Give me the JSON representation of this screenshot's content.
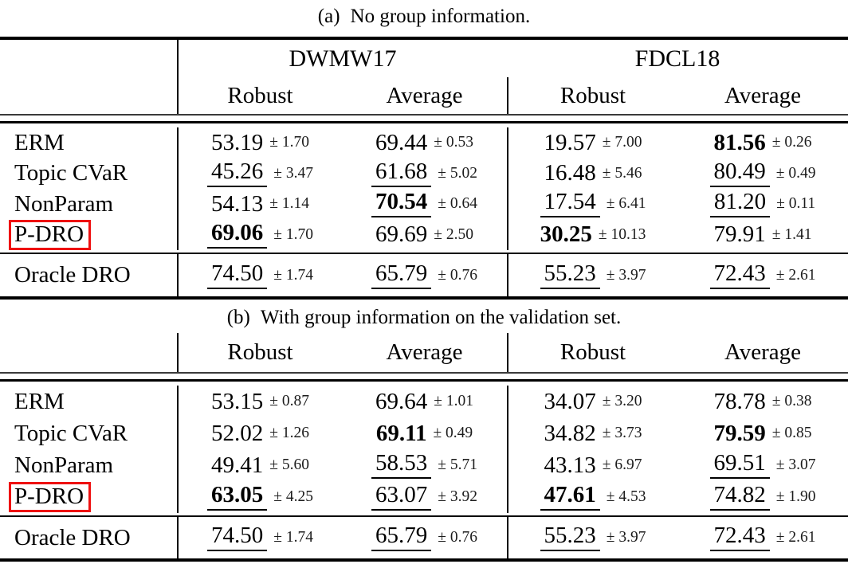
{
  "colors": {
    "highlight_box_red": "#ee1010"
  },
  "table_a": {
    "caption_tag": "(a)",
    "caption_text": "No group information.",
    "group_headers": [
      "DWMW17",
      "FDCL18"
    ],
    "column_headers": [
      "Robust",
      "Average",
      "Robust",
      "Average"
    ],
    "rows": [
      {
        "label": "ERM",
        "cells": [
          {
            "value": "53.19",
            "error": "± 1.70"
          },
          {
            "value": "69.44",
            "error": "± 0.53"
          },
          {
            "value": "19.57",
            "error": "± 7.00"
          },
          {
            "value": "81.56",
            "error": "± 0.26"
          }
        ]
      },
      {
        "label": "Topic CVaR",
        "cells": [
          {
            "value": "45.26",
            "error": "± 3.47"
          },
          {
            "value": "61.68",
            "error": "± 5.02"
          },
          {
            "value": "16.48",
            "error": "± 5.46"
          },
          {
            "value": "80.49",
            "error": "± 0.49"
          }
        ]
      },
      {
        "label": "NonParam",
        "cells": [
          {
            "value": "54.13",
            "error": "± 1.14"
          },
          {
            "value": "70.54",
            "error": "± 0.64"
          },
          {
            "value": "17.54",
            "error": "± 6.41"
          },
          {
            "value": "81.20",
            "error": "± 0.11"
          }
        ]
      },
      {
        "label": "P-DRO",
        "cells": [
          {
            "value": "69.06",
            "error": "± 1.70"
          },
          {
            "value": "69.69",
            "error": "± 2.50"
          },
          {
            "value": "30.25",
            "error": "± 10.13"
          },
          {
            "value": "79.91",
            "error": "± 1.41"
          }
        ]
      }
    ],
    "oracle_row": {
      "label": "Oracle DRO",
      "cells": [
        {
          "value": "74.50",
          "error": "± 1.74"
        },
        {
          "value": "65.79",
          "error": "± 0.76"
        },
        {
          "value": "55.23",
          "error": "± 3.97"
        },
        {
          "value": "72.43",
          "error": "± 2.61"
        }
      ]
    }
  },
  "table_b": {
    "caption_tag": "(b)",
    "caption_text": "With group information on the validation set.",
    "column_headers": [
      "Robust",
      "Average",
      "Robust",
      "Average"
    ],
    "rows": [
      {
        "label": "ERM",
        "cells": [
          {
            "value": "53.15",
            "error": "± 0.87"
          },
          {
            "value": "69.64",
            "error": "± 1.01"
          },
          {
            "value": "34.07",
            "error": "± 3.20"
          },
          {
            "value": "78.78",
            "error": "± 0.38"
          }
        ]
      },
      {
        "label": "Topic CVaR",
        "cells": [
          {
            "value": "52.02",
            "error": "± 1.26"
          },
          {
            "value": "69.11",
            "error": "± 0.49"
          },
          {
            "value": "34.82",
            "error": "± 3.73"
          },
          {
            "value": "79.59",
            "error": "± 0.85"
          }
        ]
      },
      {
        "label": "NonParam",
        "cells": [
          {
            "value": "49.41",
            "error": "± 5.60"
          },
          {
            "value": "58.53",
            "error": "± 5.71"
          },
          {
            "value": "43.13",
            "error": "± 6.97"
          },
          {
            "value": "69.51",
            "error": "± 3.07"
          }
        ]
      },
      {
        "label": "P-DRO",
        "cells": [
          {
            "value": "63.05",
            "error": "± 4.25"
          },
          {
            "value": "63.07",
            "error": "± 3.92"
          },
          {
            "value": "47.61",
            "error": "± 4.53"
          },
          {
            "value": "74.82",
            "error": "± 1.90"
          }
        ]
      }
    ],
    "oracle_row": {
      "label": "Oracle DRO",
      "cells": [
        {
          "value": "74.50",
          "error": "± 1.74"
        },
        {
          "value": "65.79",
          "error": "± 0.76"
        },
        {
          "value": "55.23",
          "error": "± 3.97"
        },
        {
          "value": "72.43",
          "error": "± 2.61"
        }
      ]
    }
  }
}
